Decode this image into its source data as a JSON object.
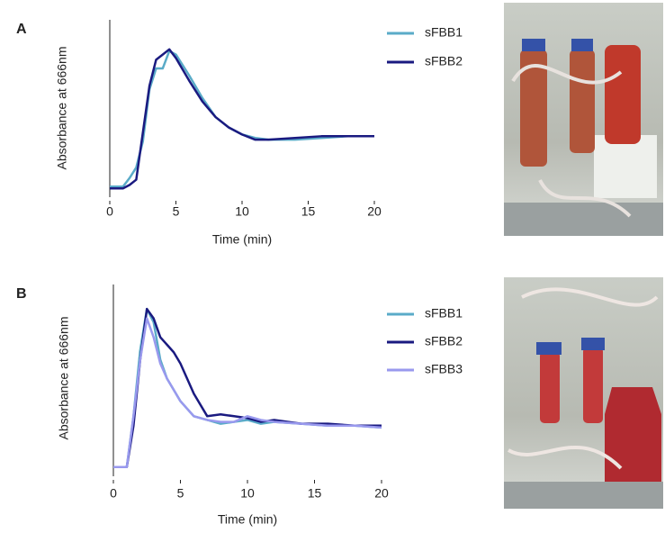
{
  "chart_data": [
    {
      "type": "line",
      "label": "A",
      "xlabel": "Time (min)",
      "ylabel": "Absorbance at 666nm",
      "x": [
        0,
        1,
        1.5,
        2,
        2.5,
        3,
        3.5,
        4,
        4.5,
        5,
        6,
        7,
        8,
        9,
        10,
        11,
        12,
        14,
        16,
        18,
        20
      ],
      "series": [
        {
          "name": "sFBB1",
          "color": "#5aabc8",
          "values": [
            0.04,
            0.04,
            0.09,
            0.15,
            0.3,
            0.6,
            0.72,
            0.72,
            0.82,
            0.8,
            0.68,
            0.55,
            0.44,
            0.38,
            0.34,
            0.32,
            0.31,
            0.31,
            0.32,
            0.33,
            0.33
          ]
        },
        {
          "name": "sFBB2",
          "color": "#1a1a80",
          "values": [
            0.03,
            0.03,
            0.05,
            0.08,
            0.35,
            0.62,
            0.77,
            0.8,
            0.83,
            0.78,
            0.65,
            0.53,
            0.44,
            0.38,
            0.34,
            0.31,
            0.31,
            0.32,
            0.33,
            0.33,
            0.33
          ]
        }
      ],
      "xlim": [
        0,
        20
      ],
      "xticks": [
        0,
        5,
        10,
        15,
        20
      ],
      "ylim": [
        0,
        1
      ],
      "grid": false
    },
    {
      "type": "line",
      "label": "B",
      "xlabel": "Time (min)",
      "ylabel": "Absorbance at 666nm",
      "x": [
        0,
        1,
        1.5,
        2,
        2.5,
        3,
        3.5,
        4,
        4.5,
        5,
        6,
        7,
        8,
        9,
        10,
        11,
        12,
        14,
        16,
        18,
        20
      ],
      "series": [
        {
          "name": "sFBB1",
          "color": "#5aabc8",
          "values": [
            0.03,
            0.03,
            0.3,
            0.65,
            0.87,
            0.8,
            0.6,
            0.5,
            0.44,
            0.38,
            0.3,
            0.28,
            0.26,
            0.27,
            0.28,
            0.26,
            0.27,
            0.26,
            0.25,
            0.25,
            0.24
          ]
        },
        {
          "name": "sFBB2",
          "color": "#1a1a80",
          "values": [
            0.03,
            0.03,
            0.25,
            0.6,
            0.87,
            0.82,
            0.72,
            0.68,
            0.64,
            0.58,
            0.42,
            0.3,
            0.31,
            0.3,
            0.29,
            0.27,
            0.28,
            0.26,
            0.26,
            0.25,
            0.25
          ]
        },
        {
          "name": "sFBB3",
          "color": "#9999ee",
          "values": [
            0.03,
            0.03,
            0.3,
            0.6,
            0.82,
            0.72,
            0.58,
            0.5,
            0.44,
            0.38,
            0.3,
            0.28,
            0.27,
            0.27,
            0.3,
            0.28,
            0.27,
            0.26,
            0.25,
            0.25,
            0.24
          ]
        }
      ],
      "xlim": [
        0,
        20
      ],
      "xticks": [
        0,
        5,
        10,
        15,
        20
      ],
      "ylim": [
        0,
        1
      ],
      "grid": false
    }
  ]
}
